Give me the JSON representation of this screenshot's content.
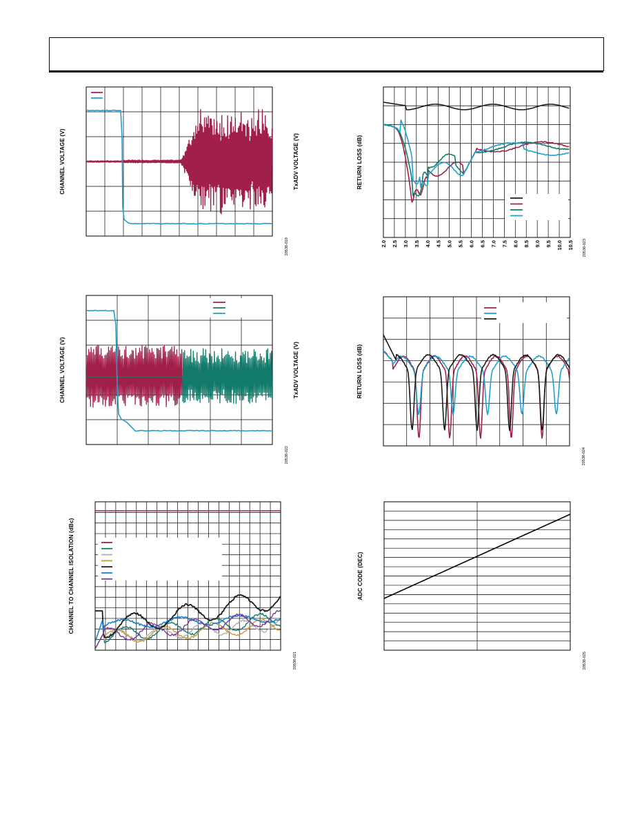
{
  "page": {
    "header_title": ""
  },
  "chart_data": [
    {
      "id": "chart1",
      "type": "line",
      "ylabel": "CHANNEL VOLTAGE (V)",
      "ylabel2": "TxADV VOLTAGE (V)",
      "figure_id": "20538-019",
      "grid": {
        "cols": 10,
        "rows": 6
      },
      "legend": "top-left",
      "series": [
        {
          "color": "#a0204a"
        },
        {
          "color": "#1ea0cf"
        }
      ]
    },
    {
      "id": "chart2",
      "type": "line",
      "ylabel": "RETURN LOSS (dB)",
      "figure_id": "20538-023",
      "x_ticks": [
        "2.0",
        "2.5",
        "3.0",
        "3.5",
        "4.0",
        "4.5",
        "5.0",
        "5.5",
        "6.0",
        "6.5",
        "7.0",
        "7.5",
        "8.0",
        "8.5",
        "9.0",
        "9.5",
        "10.0",
        "10.5"
      ],
      "xlim": [
        2.0,
        10.5
      ],
      "grid": {
        "cols": 17,
        "rows": 8
      },
      "legend": "bottom-right",
      "series": [
        {
          "color": "#1a1a1a"
        },
        {
          "color": "#a0204a"
        },
        {
          "color": "#117a6a"
        },
        {
          "color": "#1ea0cf"
        }
      ]
    },
    {
      "id": "chart3",
      "type": "line",
      "ylabel": "CHANNEL VOLTAGE (V)",
      "ylabel2": "TxADV VOLTAGE (V)",
      "figure_id": "20538-022",
      "grid": {
        "cols": 6,
        "rows": 6
      },
      "legend": "top-right",
      "series": [
        {
          "color": "#a0204a"
        },
        {
          "color": "#117a6a"
        },
        {
          "color": "#1ea0cf"
        }
      ]
    },
    {
      "id": "chart4",
      "type": "line",
      "ylabel": "RETURN LOSS (dB)",
      "figure_id": "20538-024",
      "grid": {
        "cols": 8,
        "rows": 7
      },
      "legend": "top-right",
      "series": [
        {
          "color": "#a0204a"
        },
        {
          "color": "#1ea0cf"
        },
        {
          "color": "#1a1a1a"
        }
      ]
    },
    {
      "id": "chart5",
      "type": "line",
      "ylabel": "CHANNEL TO CHANNEL ISOLATION (dBc)",
      "figure_id": "20538-021",
      "grid": {
        "cols": 18,
        "rows": 14
      },
      "legend": "left",
      "series": [
        {
          "color": "#a0204a"
        },
        {
          "color": "#117a6a"
        },
        {
          "color": "#b0b0b0"
        },
        {
          "color": "#c79a3a"
        },
        {
          "color": "#1a1a1a"
        },
        {
          "color": "#1e7fcf"
        },
        {
          "color": "#7a3a9a"
        }
      ]
    },
    {
      "id": "chart6",
      "type": "line",
      "ylabel": "ADC CODE (DEC)",
      "figure_id": "20538-025",
      "grid": {
        "cols": 2,
        "rows": 16
      },
      "series": [
        {
          "color": "#000000"
        }
      ]
    }
  ]
}
